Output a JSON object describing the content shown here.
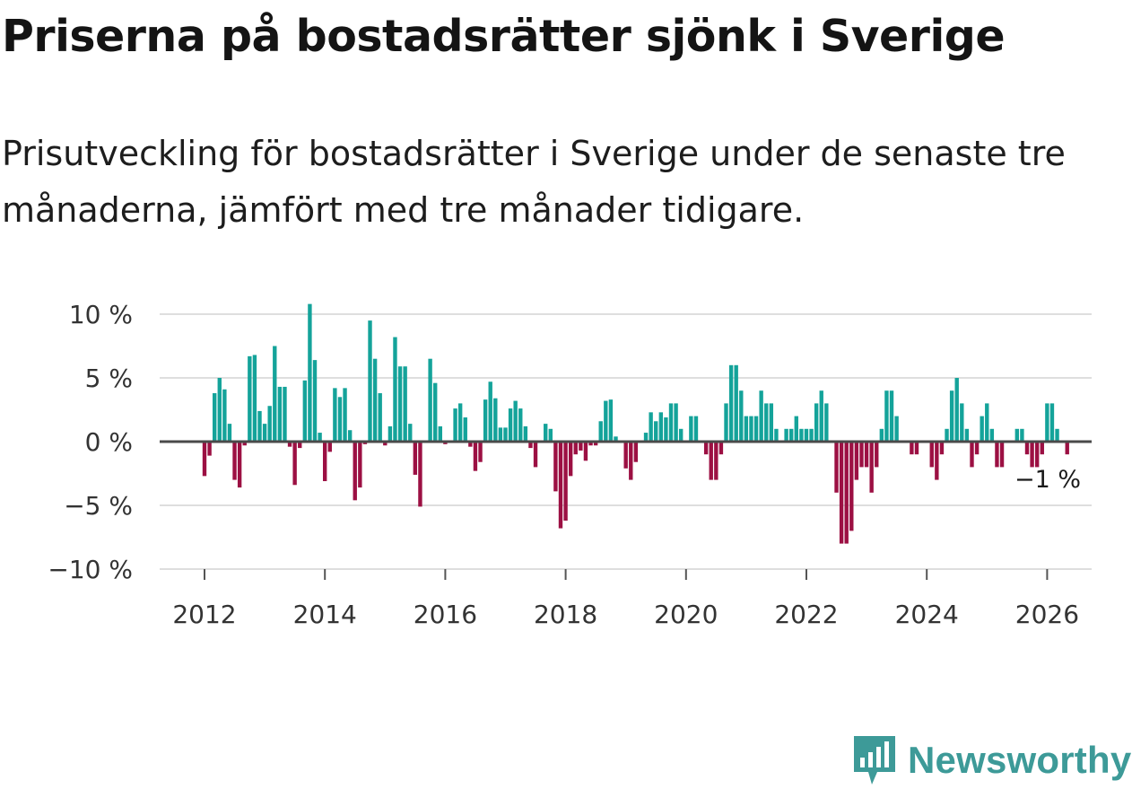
{
  "title": "Priserna på bostadsrätter sjönk i Sverige",
  "subtitle": "Prisutveckling för bostadsrätter i Sverige under de senaste tre månaderna, jämfört med tre månader tidigare.",
  "brand": "Newsworthy",
  "colors": {
    "positive": "#14a39a",
    "negative": "#9c1043",
    "grid": "#dedede",
    "zero": "#4a4a4a",
    "brand": "#3d9a98"
  },
  "chart_data": {
    "type": "bar",
    "ylim": [
      -10,
      10
    ],
    "yticks": [
      10,
      5,
      0,
      -5,
      -10
    ],
    "ytick_labels": [
      "10 %",
      "5 %",
      "0 %",
      "−5 %",
      "−10 %"
    ],
    "xticks": [
      2012,
      2014,
      2016,
      2018,
      2020,
      2022,
      2024,
      2026
    ],
    "xtick_labels": [
      "2012",
      "2014",
      "2016",
      "2018",
      "2020",
      "2022",
      "2024",
      "2026"
    ],
    "x_start": 2012,
    "x_step": 0.08333,
    "annotation": "−1 %",
    "values": [
      -2.7,
      -1.1,
      3.8,
      5.0,
      4.1,
      1.4,
      -3.0,
      -3.6,
      -0.3,
      6.7,
      6.8,
      2.4,
      1.4,
      2.8,
      7.5,
      4.3,
      4.3,
      -0.4,
      -3.4,
      -0.5,
      4.8,
      10.8,
      6.4,
      0.7,
      -3.1,
      -0.8,
      4.2,
      3.5,
      4.2,
      0.9,
      -4.6,
      -3.6,
      -0.2,
      9.5,
      6.5,
      3.8,
      -0.3,
      1.2,
      8.2,
      5.9,
      5.9,
      1.4,
      -2.6,
      -5.1,
      0.0,
      6.5,
      4.6,
      1.2,
      -0.2,
      0.0,
      2.6,
      3.0,
      1.9,
      -0.4,
      -2.3,
      -1.6,
      3.3,
      4.7,
      3.4,
      1.1,
      1.1,
      2.6,
      3.2,
      2.6,
      1.2,
      -0.5,
      -2.0,
      0.0,
      1.4,
      1.0,
      -3.9,
      -6.8,
      -6.2,
      -2.7,
      -1.0,
      -0.7,
      -1.5,
      -0.3,
      -0.3,
      1.6,
      3.2,
      3.3,
      0.4,
      0.0,
      -2.1,
      -3.0,
      -1.6,
      0.0,
      0.7,
      2.3,
      1.6,
      2.3,
      1.9,
      3.0,
      3.0,
      1.0,
      0.0,
      2.0,
      2.0,
      0.0,
      -1.0,
      -3.0,
      -3.0,
      -1.0,
      3.0,
      6.0,
      6.0,
      4.0,
      2.0,
      2.0,
      2.0,
      4.0,
      3.0,
      3.0,
      1.0,
      0.0,
      1.0,
      1.0,
      2.0,
      1.0,
      1.0,
      1.0,
      3.0,
      4.0,
      3.0,
      0.0,
      -4.0,
      -8.0,
      -8.0,
      -7.0,
      -3.0,
      -2.0,
      -2.0,
      -4.0,
      -2.0,
      1.0,
      4.0,
      4.0,
      2.0,
      0.0,
      0.0,
      -1.0,
      -1.0,
      0.0,
      0.0,
      -2.0,
      -3.0,
      -1.0,
      1.0,
      4.0,
      5.0,
      3.0,
      1.0,
      -2.0,
      -1.0,
      2.0,
      3.0,
      1.0,
      -2.0,
      -2.0,
      0.0,
      0.0,
      1.0,
      1.0,
      -1.0,
      -2.0,
      -2.0,
      -1.0,
      3.0,
      3.0,
      1.0,
      0.0,
      -1.0
    ]
  }
}
